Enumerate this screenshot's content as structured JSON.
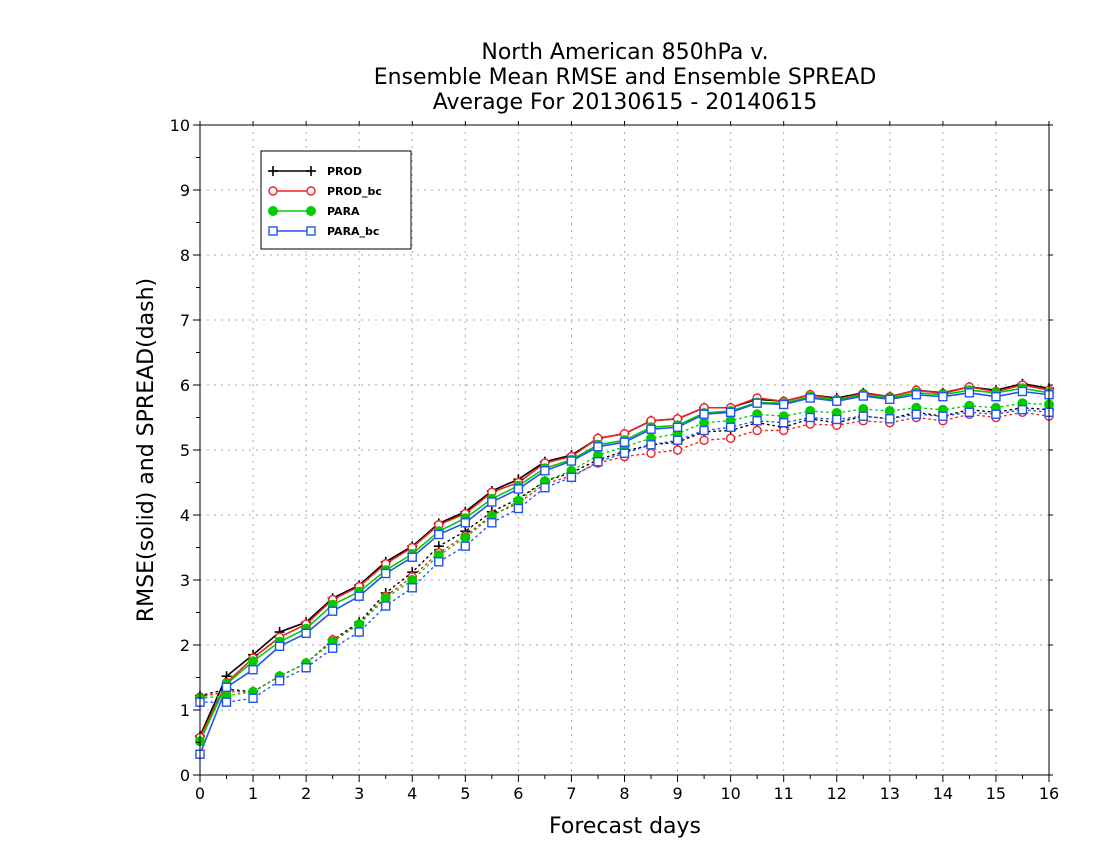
{
  "chart_data": {
    "type": "line",
    "title_lines": [
      "North American 850hPa v.",
      "Ensemble Mean RMSE and Ensemble SPREAD",
      "Average For 20130615 - 20140615"
    ],
    "xlabel": "Forecast days",
    "ylabel": "RMSE(solid) and SPREAD(dash)",
    "xlim": [
      0,
      16
    ],
    "ylim": [
      0,
      10
    ],
    "xticks": [
      "0",
      "1",
      "2",
      "3",
      "4",
      "5",
      "6",
      "7",
      "8",
      "9",
      "10",
      "11",
      "12",
      "13",
      "14",
      "15",
      "16"
    ],
    "yticks": [
      "0",
      "1",
      "2",
      "3",
      "4",
      "5",
      "6",
      "7",
      "8",
      "9",
      "10"
    ],
    "grid": true,
    "legend_position": "top-left",
    "x": [
      0,
      0.5,
      1,
      1.5,
      2,
      2.5,
      3,
      3.5,
      4,
      4.5,
      5,
      5.5,
      6,
      6.5,
      7,
      7.5,
      8,
      8.5,
      9,
      9.5,
      10,
      10.5,
      11,
      11.5,
      12,
      12.5,
      13,
      13.5,
      14,
      14.5,
      15,
      15.5,
      16
    ],
    "series": [
      {
        "name": "PROD",
        "color": "#000000",
        "marker": "plus",
        "rmse": [
          0.6,
          1.52,
          1.85,
          2.2,
          2.35,
          2.72,
          2.92,
          3.28,
          3.52,
          3.87,
          4.05,
          4.37,
          4.55,
          4.82,
          4.92,
          5.18,
          5.25,
          5.45,
          5.48,
          5.65,
          5.65,
          5.78,
          5.75,
          5.85,
          5.8,
          5.88,
          5.82,
          5.92,
          5.88,
          5.97,
          5.92,
          6.02,
          5.95
        ],
        "spread": [
          1.22,
          1.32,
          1.28,
          1.52,
          1.72,
          2.08,
          2.35,
          2.8,
          3.12,
          3.52,
          3.75,
          4.05,
          4.25,
          4.52,
          4.65,
          4.85,
          4.98,
          5.08,
          5.12,
          5.28,
          5.3,
          5.42,
          5.35,
          5.48,
          5.42,
          5.52,
          5.48,
          5.58,
          5.52,
          5.62,
          5.58,
          5.65,
          5.62
        ]
      },
      {
        "name": "PROD_bc",
        "color": "#ee2222",
        "marker": "circle-open",
        "rmse": [
          0.58,
          1.42,
          1.8,
          2.12,
          2.32,
          2.7,
          2.9,
          3.25,
          3.5,
          3.85,
          4.02,
          4.35,
          4.5,
          4.8,
          4.9,
          5.18,
          5.25,
          5.45,
          5.48,
          5.65,
          5.65,
          5.8,
          5.75,
          5.85,
          5.78,
          5.87,
          5.82,
          5.92,
          5.87,
          5.97,
          5.9,
          6.0,
          5.92
        ],
        "spread": [
          1.2,
          1.28,
          1.28,
          1.52,
          1.72,
          2.08,
          2.32,
          2.75,
          3.05,
          3.42,
          3.68,
          4.0,
          4.18,
          4.48,
          4.6,
          4.8,
          4.9,
          4.95,
          5.0,
          5.15,
          5.18,
          5.3,
          5.3,
          5.4,
          5.38,
          5.45,
          5.42,
          5.5,
          5.45,
          5.55,
          5.5,
          5.58,
          5.52
        ]
      },
      {
        "name": "PARA",
        "color": "#00cc00",
        "marker": "circle-filled",
        "rmse": [
          0.52,
          1.4,
          1.75,
          2.05,
          2.25,
          2.62,
          2.82,
          3.15,
          3.4,
          3.75,
          3.95,
          4.25,
          4.45,
          4.72,
          4.85,
          5.08,
          5.15,
          5.35,
          5.38,
          5.57,
          5.6,
          5.73,
          5.72,
          5.82,
          5.77,
          5.85,
          5.8,
          5.88,
          5.85,
          5.92,
          5.88,
          5.95,
          5.88
        ],
        "spread": [
          1.18,
          1.22,
          1.28,
          1.52,
          1.72,
          2.05,
          2.32,
          2.72,
          3.0,
          3.38,
          3.65,
          3.98,
          4.22,
          4.52,
          4.68,
          4.92,
          5.05,
          5.18,
          5.25,
          5.42,
          5.45,
          5.55,
          5.52,
          5.6,
          5.57,
          5.63,
          5.6,
          5.65,
          5.62,
          5.68,
          5.65,
          5.72,
          5.7
        ]
      },
      {
        "name": "PARA_bc",
        "color": "#2255ee",
        "marker": "square-open",
        "rmse": [
          0.32,
          1.35,
          1.62,
          1.98,
          2.18,
          2.52,
          2.75,
          3.1,
          3.35,
          3.7,
          3.88,
          4.2,
          4.4,
          4.68,
          4.83,
          5.05,
          5.12,
          5.32,
          5.35,
          5.55,
          5.58,
          5.72,
          5.7,
          5.8,
          5.75,
          5.83,
          5.78,
          5.85,
          5.82,
          5.88,
          5.82,
          5.9,
          5.85
        ],
        "spread": [
          1.12,
          1.12,
          1.18,
          1.45,
          1.65,
          1.95,
          2.2,
          2.6,
          2.88,
          3.28,
          3.52,
          3.88,
          4.1,
          4.42,
          4.58,
          4.82,
          4.95,
          5.08,
          5.15,
          5.3,
          5.35,
          5.45,
          5.42,
          5.5,
          5.47,
          5.52,
          5.48,
          5.55,
          5.52,
          5.58,
          5.55,
          5.62,
          5.58
        ]
      }
    ]
  }
}
